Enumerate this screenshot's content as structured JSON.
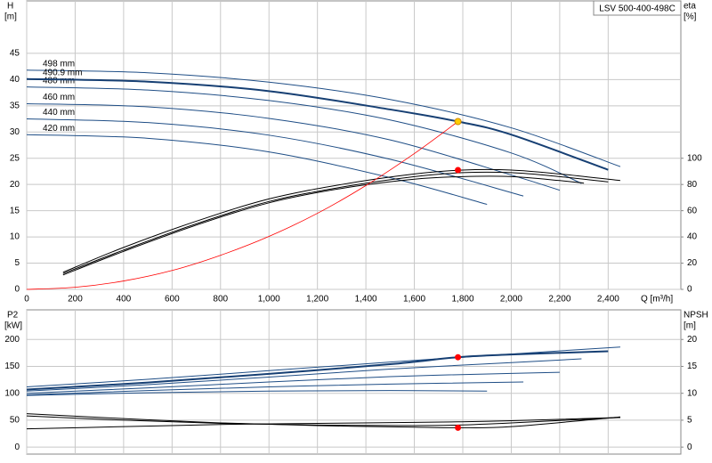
{
  "chart_data": [
    {
      "type": "line",
      "title": "LSV 500-400-498C",
      "x_label": "Q [m³/h]",
      "y_label": "H",
      "y_unit": "[m]",
      "y2_label": "eta",
      "y2_unit": "[%]",
      "xlim": [
        0,
        2700
      ],
      "ylim": [
        0,
        55
      ],
      "y2lim": [
        0,
        220
      ],
      "grid": true,
      "xticks": [
        0,
        200,
        400,
        600,
        800,
        {
          "value": 1000,
          "label": "1,000"
        },
        {
          "value": 1200,
          "label": "1,200"
        },
        {
          "value": 1400,
          "label": "1,400"
        },
        {
          "value": 1600,
          "label": "1,600"
        },
        {
          "value": 1800,
          "label": "1,800"
        },
        {
          "value": 2000,
          "label": "2,000"
        },
        {
          "value": 2200,
          "label": "2,200"
        },
        {
          "value": 2400,
          "label": "2,400"
        }
      ],
      "yticks": [
        0,
        5,
        10,
        15,
        20,
        25,
        30,
        35,
        40,
        45
      ],
      "y2ticks": [
        0,
        20,
        40,
        60,
        80,
        100
      ],
      "series": [
        {
          "name": "498 mm",
          "color": "#1f4e86",
          "width": 1,
          "x": [
            0,
            500,
            1000,
            1500,
            2000,
            2450
          ],
          "values": [
            41.8,
            41.3,
            39.5,
            36.2,
            30.8,
            23.4
          ]
        },
        {
          "name": "480 mm",
          "color": "#1f4e86",
          "width": 1,
          "x": [
            0,
            500,
            1000,
            1500,
            2000,
            2290
          ],
          "values": [
            38.6,
            38.0,
            36.0,
            32.3,
            26.0,
            20.2
          ]
        },
        {
          "name": "490.9 mm",
          "color": "#163f73",
          "width": 2,
          "x": [
            0,
            500,
            1000,
            1500,
            1780,
            2000,
            2400
          ],
          "values": [
            40.1,
            39.6,
            37.8,
            34.3,
            32.0,
            29.5,
            22.8
          ]
        },
        {
          "name": "460 mm",
          "color": "#1f4e86",
          "width": 1,
          "x": [
            0,
            500,
            1000,
            1500,
            2000,
            2200
          ],
          "values": [
            35.4,
            34.8,
            32.6,
            28.5,
            21.8,
            18.9
          ]
        },
        {
          "name": "440 mm",
          "color": "#1f4e86",
          "width": 1,
          "x": [
            0,
            500,
            1000,
            1500,
            2050
          ],
          "values": [
            32.5,
            31.8,
            29.4,
            24.8,
            17.8
          ]
        },
        {
          "name": "420 mm",
          "color": "#1f4e86",
          "width": 1,
          "x": [
            0,
            500,
            1000,
            1500,
            1900
          ],
          "values": [
            29.5,
            28.8,
            26.2,
            21.3,
            16.2
          ]
        },
        {
          "color": "#000000",
          "width": 1,
          "axis": "y2",
          "x": [
            150,
            400,
            700,
            1000,
            1300,
            1600,
            1800,
            2000,
            2200,
            2450
          ],
          "values": [
            13,
            32,
            52,
            69,
            80,
            88,
            91,
            91,
            88,
            83
          ]
        },
        {
          "color": "#000000",
          "width": 1,
          "axis": "y2",
          "x": [
            150,
            400,
            700,
            1000,
            1300,
            1600,
            1800,
            2000,
            2200,
            2400
          ],
          "values": [
            12,
            30,
            50,
            67,
            78,
            86,
            89,
            89,
            86,
            82
          ]
        },
        {
          "color": "#000000",
          "width": 1,
          "axis": "y2",
          "x": [
            150,
            400,
            700,
            1000,
            1300,
            1600,
            1800,
            2000,
            2200,
            2300
          ],
          "values": [
            11,
            29,
            49,
            66,
            77,
            84,
            86,
            86,
            83,
            81
          ]
        },
        {
          "color": "#ff0000",
          "width": 0.8,
          "x": [
            0,
            200,
            400,
            600,
            800,
            1000,
            1200,
            1400,
            1600,
            1780
          ],
          "values": [
            0,
            0.4,
            1.6,
            3.6,
            6.5,
            10.1,
            14.5,
            19.8,
            25.9,
            32
          ]
        },
        {
          "color": "#ffcc00",
          "marker": "dot",
          "x": [
            1780
          ],
          "values": [
            32
          ]
        },
        {
          "color": "#ff0000",
          "marker": "dot",
          "axis": "y2",
          "x": [
            1780
          ],
          "values": [
            91
          ]
        }
      ]
    },
    {
      "type": "line",
      "y_label": "P2",
      "y_unit": "[kW]",
      "y2_label": "NPSH",
      "y2_unit": "[m]",
      "xlim": [
        0,
        2700
      ],
      "ylim": [
        -13,
        255
      ],
      "y2lim": [
        -1.3,
        25.5
      ],
      "grid": true,
      "xtick_labels": false,
      "xticks": [
        0,
        200,
        400,
        600,
        800,
        1000,
        1200,
        1400,
        1600,
        1800,
        2000,
        2200,
        2400
      ],
      "yticks": [
        0,
        50,
        100,
        150,
        200
      ],
      "y2ticks": [
        0,
        5,
        10,
        15,
        20
      ],
      "series": [
        {
          "color": "#1f4e86",
          "width": 1,
          "x": [
            0,
            500,
            1000,
            1500,
            2000,
            2450
          ],
          "values": [
            112,
            126,
            142,
            158,
            173,
            186
          ]
        },
        {
          "color": "#163f73",
          "width": 2,
          "x": [
            0,
            500,
            1000,
            1500,
            1780,
            2000,
            2400
          ],
          "values": [
            107,
            120,
            136,
            154,
            167,
            172,
            178
          ]
        },
        {
          "color": "#1f4e86",
          "width": 1,
          "x": [
            0,
            500,
            1000,
            1500,
            2000,
            2290
          ],
          "values": [
            104,
            116,
            130,
            145,
            157,
            164
          ]
        },
        {
          "color": "#1f4e86",
          "width": 1,
          "x": [
            0,
            500,
            1000,
            1500,
            2000,
            2200
          ],
          "values": [
            100,
            110,
            121,
            131,
            137,
            139
          ]
        },
        {
          "color": "#1f4e86",
          "width": 1,
          "x": [
            0,
            500,
            1000,
            1500,
            2050
          ],
          "values": [
            97,
            105,
            112,
            117,
            121
          ]
        },
        {
          "color": "#1f4e86",
          "width": 1,
          "x": [
            0,
            500,
            1000,
            1500,
            1900
          ],
          "values": [
            96,
            101,
            104,
            105,
            104
          ]
        },
        {
          "color": "#000000",
          "width": 1,
          "axis": "y2",
          "x": [
            0,
            400,
            800,
            1200,
            1600,
            1780,
            2000,
            2450
          ],
          "values": [
            6.2,
            5.3,
            4.5,
            4.0,
            3.7,
            3.6,
            3.8,
            5.6
          ]
        },
        {
          "color": "#000000",
          "width": 1,
          "axis": "y2",
          "x": [
            0,
            400,
            800,
            1200,
            1600,
            1780,
            2000,
            2450
          ],
          "values": [
            5.8,
            5.0,
            4.4,
            4.1,
            4.0,
            4.1,
            4.5,
            5.5
          ]
        },
        {
          "color": "#000000",
          "width": 1,
          "axis": "y2",
          "x": [
            0,
            400,
            800,
            1200,
            1600,
            1780,
            2000,
            2450
          ],
          "values": [
            3.4,
            3.8,
            4.2,
            4.4,
            4.6,
            4.7,
            4.9,
            5.5
          ]
        },
        {
          "color": "#ff0000",
          "marker": "dot",
          "x": [
            1780
          ],
          "values": [
            167
          ]
        },
        {
          "color": "#ff0000",
          "marker": "dot",
          "axis": "y2",
          "x": [
            1780
          ],
          "values": [
            3.6
          ]
        }
      ]
    }
  ]
}
